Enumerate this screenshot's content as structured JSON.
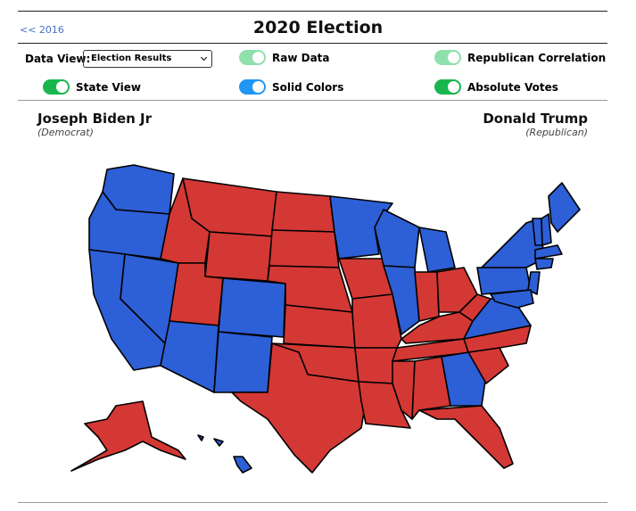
{
  "nav": {
    "prev_link": "<< 2016"
  },
  "header": {
    "title": "2020 Election"
  },
  "controls": {
    "data_view_label": "Data View:",
    "data_view_selected": "Election Results",
    "toggles": [
      {
        "label": "Raw Data",
        "on": true,
        "enabled": false,
        "color": "#8fe0ac"
      },
      {
        "label": "Republican Correlation",
        "on": true,
        "enabled": false,
        "color": "#8fe0ac"
      },
      {
        "label": "State View",
        "on": true,
        "enabled": true,
        "color": "#19b64f"
      },
      {
        "label": "Solid Colors",
        "on": true,
        "enabled": true,
        "color": "#2196f3"
      },
      {
        "label": "Absolute Votes",
        "on": true,
        "enabled": true,
        "color": "#19b64f"
      }
    ]
  },
  "candidates": [
    {
      "name": "Joseph Biden Jr",
      "party": "(Democrat)"
    },
    {
      "name": "Donald Trump",
      "party": "(Republican)"
    }
  ]
}
